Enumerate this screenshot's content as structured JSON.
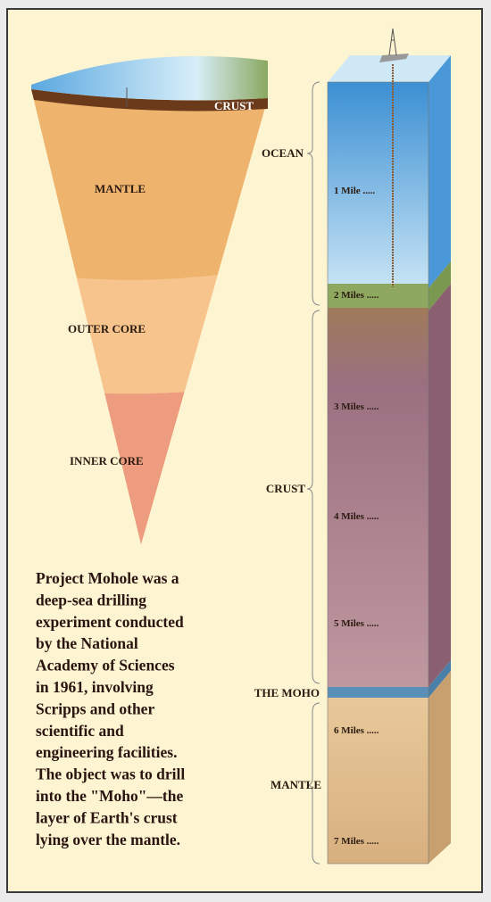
{
  "cone_labels": [
    "CRUST",
    "MANTLE",
    "OUTER CORE",
    "INNER CORE"
  ],
  "column_labels": [
    "OCEAN",
    "CRUST",
    "THE MOHO",
    "MANTLE"
  ],
  "depth_labels": [
    "1 Mile .....",
    "2 Miles .....",
    "3 Miles .....",
    "4 Miles .....",
    "5 Miles .....",
    "6 Miles .....",
    "7 Miles ....."
  ],
  "caption": [
    "Project Mohole was a",
    "deep-sea drilling",
    "experiment conducted",
    "by the National",
    "Academy of Sciences",
    "in 1961, involving",
    "Scripps and other",
    "scientific and",
    "engineering facilities.",
    "The object was to drill",
    "into the \"Moho\"—the",
    "layer of Earth's crust",
    "lying over the mantle."
  ]
}
